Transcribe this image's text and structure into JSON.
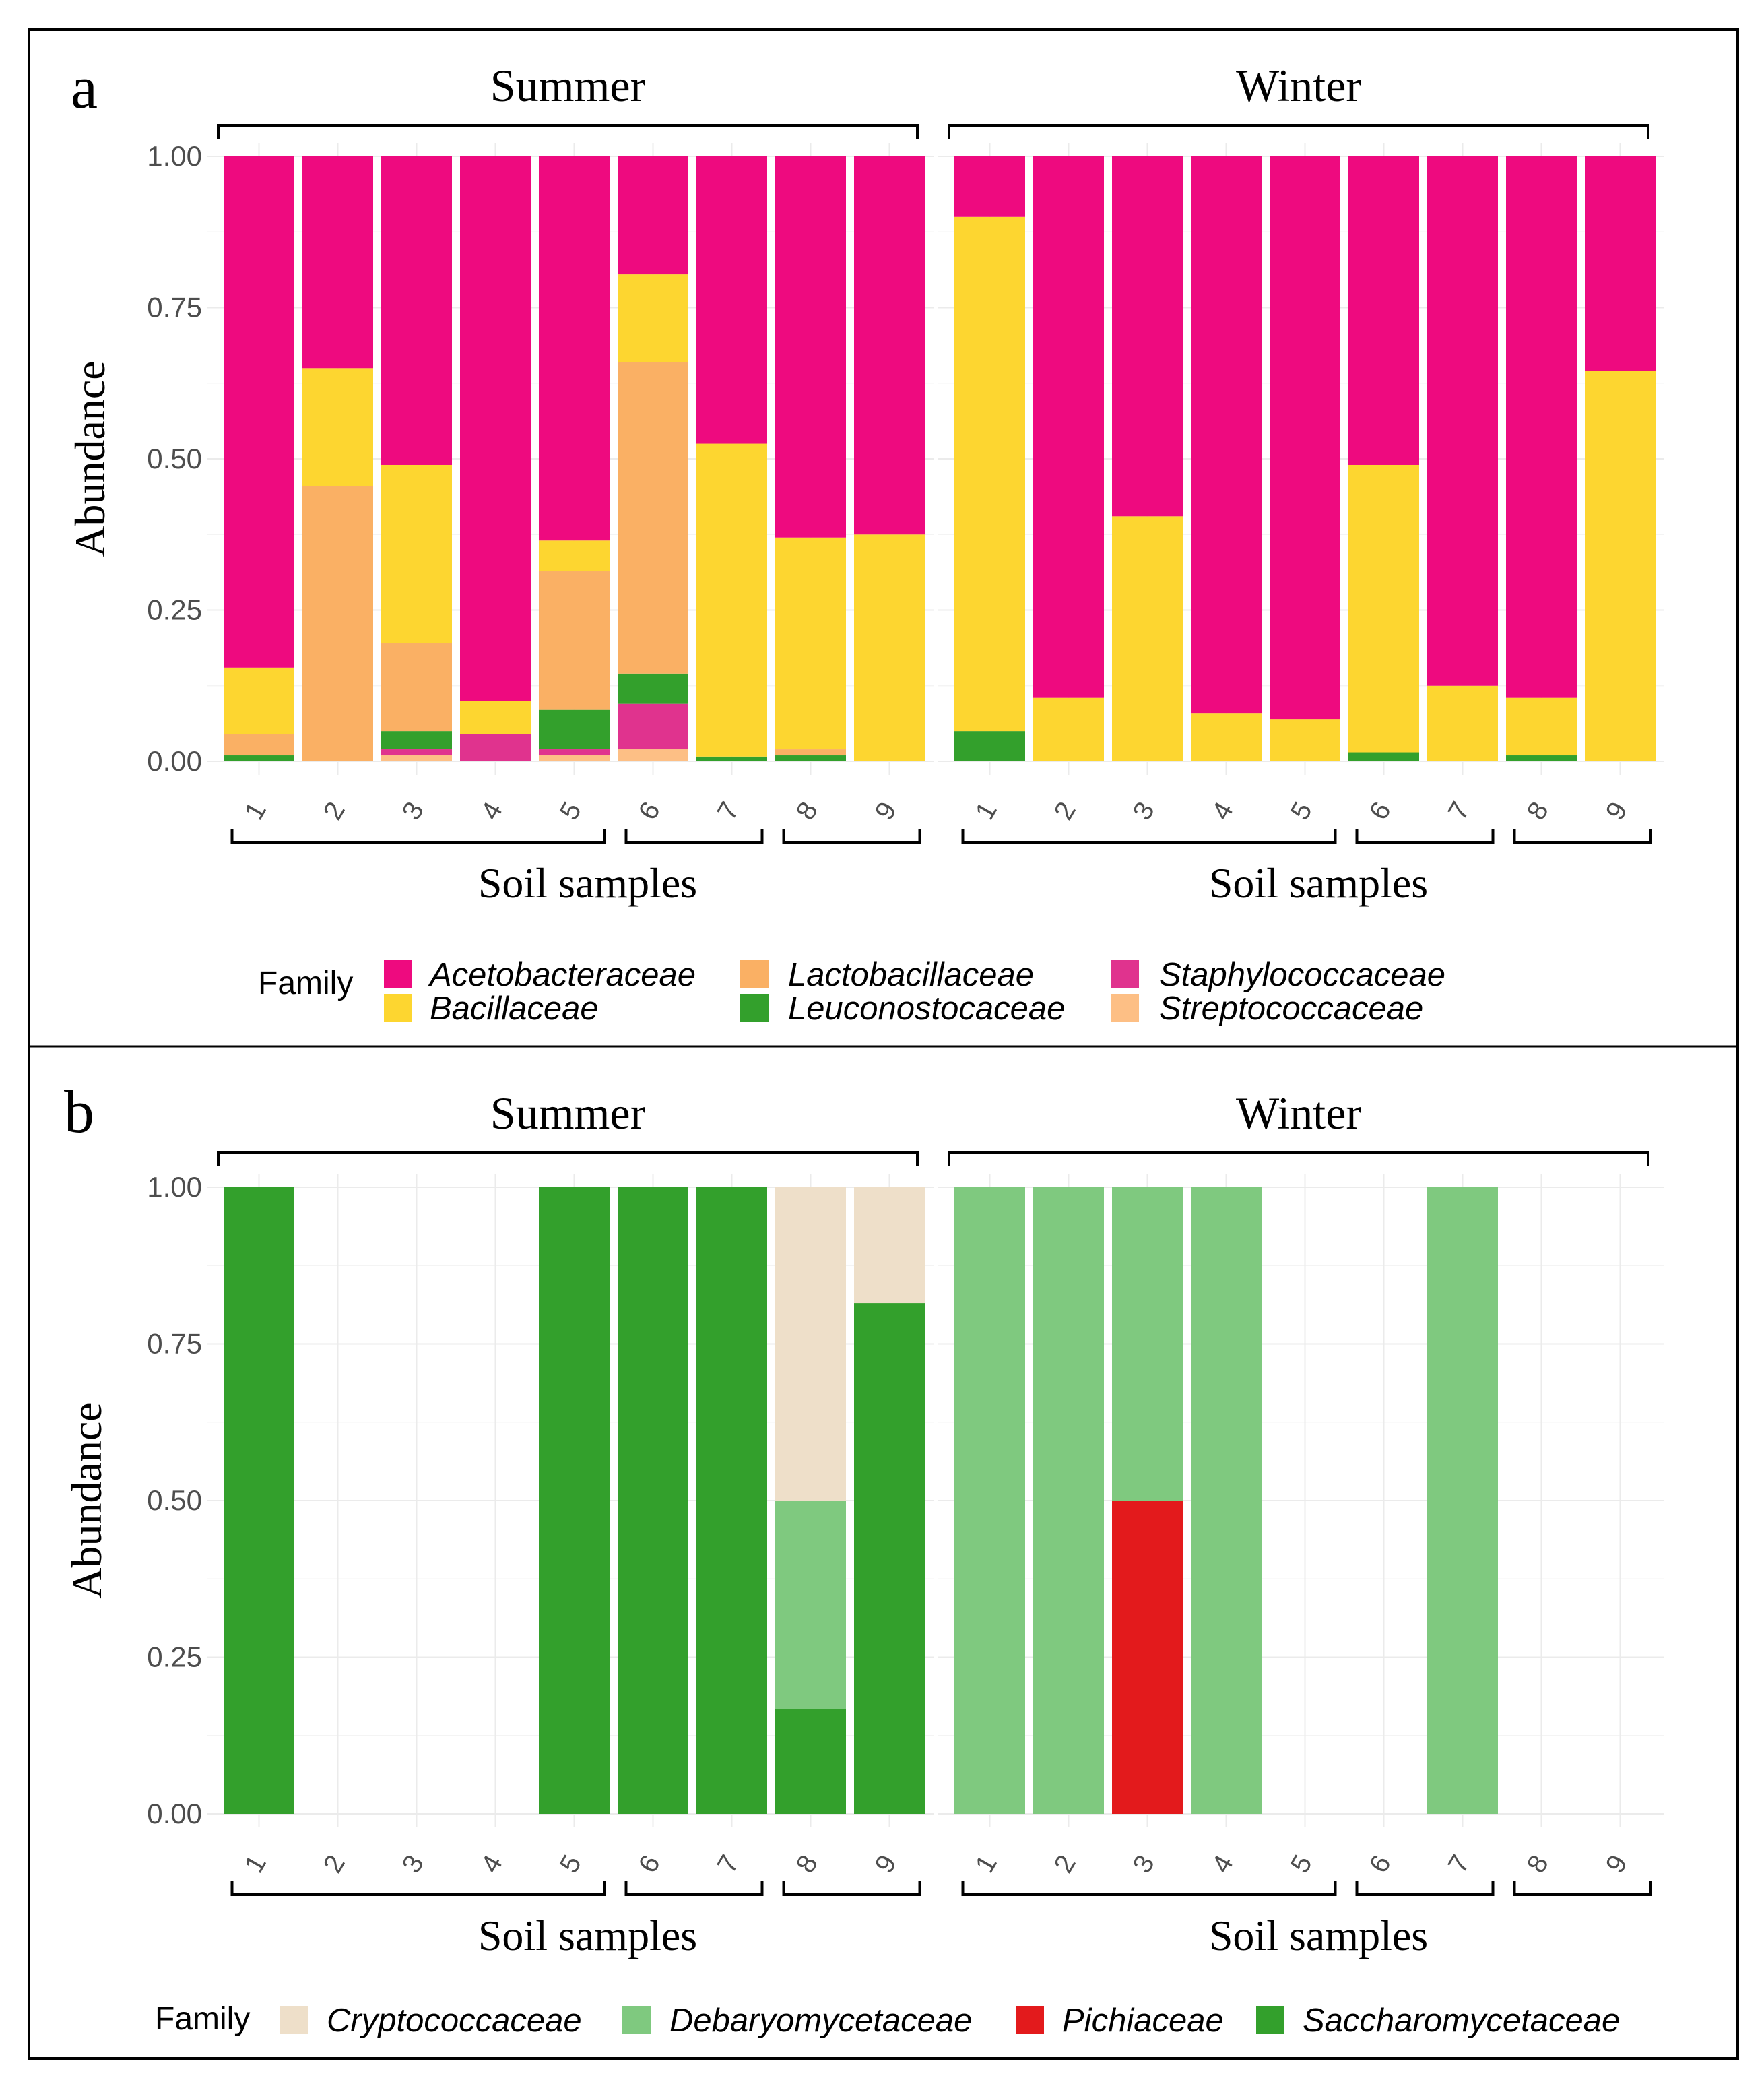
{
  "chart_data": [
    {
      "type": "bar",
      "panel_label": "a",
      "ylabel": "Abundance",
      "ylim": [
        0,
        1
      ],
      "yticks": [
        "0.00",
        "0.25",
        "0.50",
        "0.75",
        "1.00"
      ],
      "xlabel": "Soil samples",
      "legend_title": "Family",
      "families": [
        {
          "name": "Acetobacteraceae",
          "color": "#EE0A7F"
        },
        {
          "name": "Bacillaceae",
          "color": "#FDD630"
        },
        {
          "name": "Lactobacillaceae",
          "color": "#FAB064"
        },
        {
          "name": "Leuconostocaceae",
          "color": "#33A02C"
        },
        {
          "name": "Staphylococcaceae",
          "color": "#E0338E"
        },
        {
          "name": "Streptococcaceae",
          "color": "#FDBF85"
        }
      ],
      "stack_order": [
        "Streptococcaceae",
        "Staphylococcaceae",
        "Leuconostocaceae",
        "Lactobacillaceae",
        "Bacillaceae",
        "Acetobacteraceae"
      ],
      "groups": [
        {
          "name": "Summer",
          "categories": [
            "1",
            "2",
            "3",
            "4",
            "5",
            "6",
            "7",
            "8",
            "9"
          ],
          "xbrackets": [
            [
              1,
              5
            ],
            [
              6,
              7
            ],
            [
              8,
              9
            ]
          ],
          "samples": [
            {
              "Streptococcaceae": 0.0,
              "Staphylococcaceae": 0.0,
              "Leuconostocaceae": 0.01,
              "Lactobacillaceae": 0.035,
              "Bacillaceae": 0.11,
              "Acetobacteraceae": 0.845
            },
            {
              "Streptococcaceae": 0.0,
              "Staphylococcaceae": 0.0,
              "Leuconostocaceae": 0.0,
              "Lactobacillaceae": 0.455,
              "Bacillaceae": 0.195,
              "Acetobacteraceae": 0.35
            },
            {
              "Streptococcaceae": 0.01,
              "Staphylococcaceae": 0.01,
              "Leuconostocaceae": 0.03,
              "Lactobacillaceae": 0.145,
              "Bacillaceae": 0.295,
              "Acetobacteraceae": 0.51
            },
            {
              "Streptococcaceae": 0.0,
              "Staphylococcaceae": 0.045,
              "Leuconostocaceae": 0.0,
              "Lactobacillaceae": 0.0,
              "Bacillaceae": 0.055,
              "Acetobacteraceae": 0.9
            },
            {
              "Streptococcaceae": 0.01,
              "Staphylococcaceae": 0.01,
              "Leuconostocaceae": 0.065,
              "Lactobacillaceae": 0.23,
              "Bacillaceae": 0.05,
              "Acetobacteraceae": 0.635
            },
            {
              "Streptococcaceae": 0.02,
              "Staphylococcaceae": 0.075,
              "Leuconostocaceae": 0.05,
              "Lactobacillaceae": 0.515,
              "Bacillaceae": 0.145,
              "Acetobacteraceae": 0.195
            },
            {
              "Streptococcaceae": 0.0,
              "Staphylococcaceae": 0.0,
              "Leuconostocaceae": 0.008,
              "Lactobacillaceae": 0.0,
              "Bacillaceae": 0.517,
              "Acetobacteraceae": 0.475
            },
            {
              "Streptococcaceae": 0.0,
              "Staphylococcaceae": 0.0,
              "Leuconostocaceae": 0.01,
              "Lactobacillaceae": 0.01,
              "Bacillaceae": 0.35,
              "Acetobacteraceae": 0.63
            },
            {
              "Streptococcaceae": 0.0,
              "Staphylococcaceae": 0.0,
              "Leuconostocaceae": 0.0,
              "Lactobacillaceae": 0.0,
              "Bacillaceae": 0.375,
              "Acetobacteraceae": 0.625
            }
          ]
        },
        {
          "name": "Winter",
          "categories": [
            "1",
            "2",
            "3",
            "4",
            "5",
            "6",
            "7",
            "8",
            "9"
          ],
          "xbrackets": [
            [
              1,
              5
            ],
            [
              6,
              7
            ],
            [
              8,
              9
            ]
          ],
          "samples": [
            {
              "Streptococcaceae": 0.0,
              "Staphylococcaceae": 0.0,
              "Leuconostocaceae": 0.05,
              "Lactobacillaceae": 0.0,
              "Bacillaceae": 0.85,
              "Acetobacteraceae": 0.1
            },
            {
              "Streptococcaceae": 0.0,
              "Staphylococcaceae": 0.0,
              "Leuconostocaceae": 0.0,
              "Lactobacillaceae": 0.0,
              "Bacillaceae": 0.105,
              "Acetobacteraceae": 0.895
            },
            {
              "Streptococcaceae": 0.0,
              "Staphylococcaceae": 0.0,
              "Leuconostocaceae": 0.0,
              "Lactobacillaceae": 0.0,
              "Bacillaceae": 0.405,
              "Acetobacteraceae": 0.595
            },
            {
              "Streptococcaceae": 0.0,
              "Staphylococcaceae": 0.0,
              "Leuconostocaceae": 0.0,
              "Lactobacillaceae": 0.0,
              "Bacillaceae": 0.08,
              "Acetobacteraceae": 0.92
            },
            {
              "Streptococcaceae": 0.0,
              "Staphylococcaceae": 0.0,
              "Leuconostocaceae": 0.0,
              "Lactobacillaceae": 0.0,
              "Bacillaceae": 0.07,
              "Acetobacteraceae": 0.93
            },
            {
              "Streptococcaceae": 0.0,
              "Staphylococcaceae": 0.0,
              "Leuconostocaceae": 0.015,
              "Lactobacillaceae": 0.0,
              "Bacillaceae": 0.475,
              "Acetobacteraceae": 0.51
            },
            {
              "Streptococcaceae": 0.0,
              "Staphylococcaceae": 0.0,
              "Leuconostocaceae": 0.0,
              "Lactobacillaceae": 0.0,
              "Bacillaceae": 0.125,
              "Acetobacteraceae": 0.875
            },
            {
              "Streptococcaceae": 0.0,
              "Staphylococcaceae": 0.0,
              "Leuconostocaceae": 0.01,
              "Lactobacillaceae": 0.0,
              "Bacillaceae": 0.095,
              "Acetobacteraceae": 0.895
            },
            {
              "Streptococcaceae": 0.0,
              "Staphylococcaceae": 0.0,
              "Leuconostocaceae": 0.0,
              "Lactobacillaceae": 0.0,
              "Bacillaceae": 0.645,
              "Acetobacteraceae": 0.355
            }
          ]
        }
      ]
    },
    {
      "type": "bar",
      "panel_label": "b",
      "ylabel": "Abundance",
      "ylim": [
        0,
        1
      ],
      "yticks": [
        "0.00",
        "0.25",
        "0.50",
        "0.75",
        "1.00"
      ],
      "xlabel": "Soil samples",
      "legend_title": "Family",
      "families": [
        {
          "name": "Cryptococcaceae",
          "color": "#EEDFC9"
        },
        {
          "name": "Debaryomycetaceae",
          "color": "#7FC97F"
        },
        {
          "name": "Pichiaceae",
          "color": "#E31A1C"
        },
        {
          "name": "Saccharomycetaceae",
          "color": "#33A02C"
        }
      ],
      "stack_order": [
        "Saccharomycetaceae",
        "Pichiaceae",
        "Debaryomycetaceae",
        "Cryptococcaceae"
      ],
      "groups": [
        {
          "name": "Summer",
          "categories": [
            "1",
            "2",
            "3",
            "4",
            "5",
            "6",
            "7",
            "8",
            "9"
          ],
          "xbrackets": [
            [
              1,
              5
            ],
            [
              6,
              7
            ],
            [
              8,
              9
            ]
          ],
          "samples": [
            {
              "Saccharomycetaceae": 1.0,
              "Pichiaceae": 0.0,
              "Debaryomycetaceae": 0.0,
              "Cryptococcaceae": 0.0
            },
            {
              "Saccharomycetaceae": 0.0,
              "Pichiaceae": 0.0,
              "Debaryomycetaceae": 0.0,
              "Cryptococcaceae": 0.0
            },
            {
              "Saccharomycetaceae": 0.0,
              "Pichiaceae": 0.0,
              "Debaryomycetaceae": 0.0,
              "Cryptococcaceae": 0.0
            },
            {
              "Saccharomycetaceae": 0.0,
              "Pichiaceae": 0.0,
              "Debaryomycetaceae": 0.0,
              "Cryptococcaceae": 0.0
            },
            {
              "Saccharomycetaceae": 1.0,
              "Pichiaceae": 0.0,
              "Debaryomycetaceae": 0.0,
              "Cryptococcaceae": 0.0
            },
            {
              "Saccharomycetaceae": 1.0,
              "Pichiaceae": 0.0,
              "Debaryomycetaceae": 0.0,
              "Cryptococcaceae": 0.0
            },
            {
              "Saccharomycetaceae": 1.0,
              "Pichiaceae": 0.0,
              "Debaryomycetaceae": 0.0,
              "Cryptococcaceae": 0.0
            },
            {
              "Saccharomycetaceae": 0.167,
              "Pichiaceae": 0.0,
              "Debaryomycetaceae": 0.333,
              "Cryptococcaceae": 0.5
            },
            {
              "Saccharomycetaceae": 0.815,
              "Pichiaceae": 0.0,
              "Debaryomycetaceae": 0.0,
              "Cryptococcaceae": 0.185
            }
          ]
        },
        {
          "name": "Winter",
          "categories": [
            "1",
            "2",
            "3",
            "4",
            "5",
            "6",
            "7",
            "8",
            "9"
          ],
          "xbrackets": [
            [
              1,
              5
            ],
            [
              6,
              7
            ],
            [
              8,
              9
            ]
          ],
          "samples": [
            {
              "Saccharomycetaceae": 0.0,
              "Pichiaceae": 0.0,
              "Debaryomycetaceae": 1.0,
              "Cryptococcaceae": 0.0
            },
            {
              "Saccharomycetaceae": 0.0,
              "Pichiaceae": 0.0,
              "Debaryomycetaceae": 1.0,
              "Cryptococcaceae": 0.0
            },
            {
              "Saccharomycetaceae": 0.0,
              "Pichiaceae": 0.5,
              "Debaryomycetaceae": 0.5,
              "Cryptococcaceae": 0.0
            },
            {
              "Saccharomycetaceae": 0.0,
              "Pichiaceae": 0.0,
              "Debaryomycetaceae": 1.0,
              "Cryptococcaceae": 0.0
            },
            {
              "Saccharomycetaceae": 0.0,
              "Pichiaceae": 0.0,
              "Debaryomycetaceae": 0.0,
              "Cryptococcaceae": 0.0
            },
            {
              "Saccharomycetaceae": 0.0,
              "Pichiaceae": 0.0,
              "Debaryomycetaceae": 0.0,
              "Cryptococcaceae": 0.0
            },
            {
              "Saccharomycetaceae": 0.0,
              "Pichiaceae": 0.0,
              "Debaryomycetaceae": 1.0,
              "Cryptococcaceae": 0.0
            },
            {
              "Saccharomycetaceae": 0.0,
              "Pichiaceae": 0.0,
              "Debaryomycetaceae": 0.0,
              "Cryptococcaceae": 0.0
            },
            {
              "Saccharomycetaceae": 0.0,
              "Pichiaceae": 0.0,
              "Debaryomycetaceae": 0.0,
              "Cryptococcaceae": 0.0
            }
          ]
        }
      ]
    }
  ]
}
